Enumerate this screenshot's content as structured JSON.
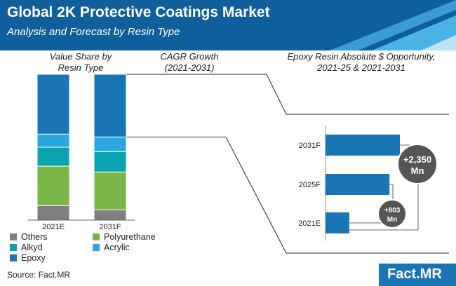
{
  "header": {
    "title": "Global 2K Protective Coatings Market",
    "subtitle": "Analysis and Forecast by Resin Type"
  },
  "panels": {
    "share_title_l1": "Value Share by",
    "share_title_l2": "Resin Type",
    "cagr_title_l1": "CAGR Growth",
    "cagr_title_l2": "(2021-2031)",
    "opp_title_l1": "Epoxy Resin Absolute $ Opportunity,",
    "opp_title_l2": "2021-25 & 2021-2031"
  },
  "footer": {
    "source": "Source: Fact.MR",
    "logo": "Fact.MR"
  },
  "colors": {
    "header_dark": "#0f5f9c",
    "header_light": "#4bb4e6",
    "Others": "#7f7f7f",
    "Polyurethane": "#7ab648",
    "Alkyd": "#0aa3b0",
    "Acrylic": "#2aa7e0",
    "Epoxy": "#1a75b5",
    "bubble": "#555555"
  },
  "chart_data": [
    {
      "type": "bar",
      "stacked": true,
      "categories": [
        "2021E",
        "2031F"
      ],
      "series": [
        {
          "name": "Others",
          "values": [
            10,
            7
          ]
        },
        {
          "name": "Polyurethane",
          "values": [
            27,
            26
          ]
        },
        {
          "name": "Alkyd",
          "values": [
            13,
            14
          ]
        },
        {
          "name": "Acrylic",
          "values": [
            9,
            10
          ]
        },
        {
          "name": "Epoxy",
          "values": [
            41,
            43
          ]
        }
      ],
      "ylim": [
        0,
        100
      ],
      "legend": "bottom",
      "title": "Value Share by Resin Type"
    },
    {
      "type": "bar",
      "orientation": "horizontal",
      "categories": [
        "2031F",
        "2025F",
        "2021E"
      ],
      "values": [
        100,
        86,
        32
      ],
      "annotations": [
        "+803 Mn",
        "+2,350 Mn"
      ],
      "title": "Epoxy Resin Absolute $ Opportunity, 2021-25 & 2021-2031"
    }
  ]
}
